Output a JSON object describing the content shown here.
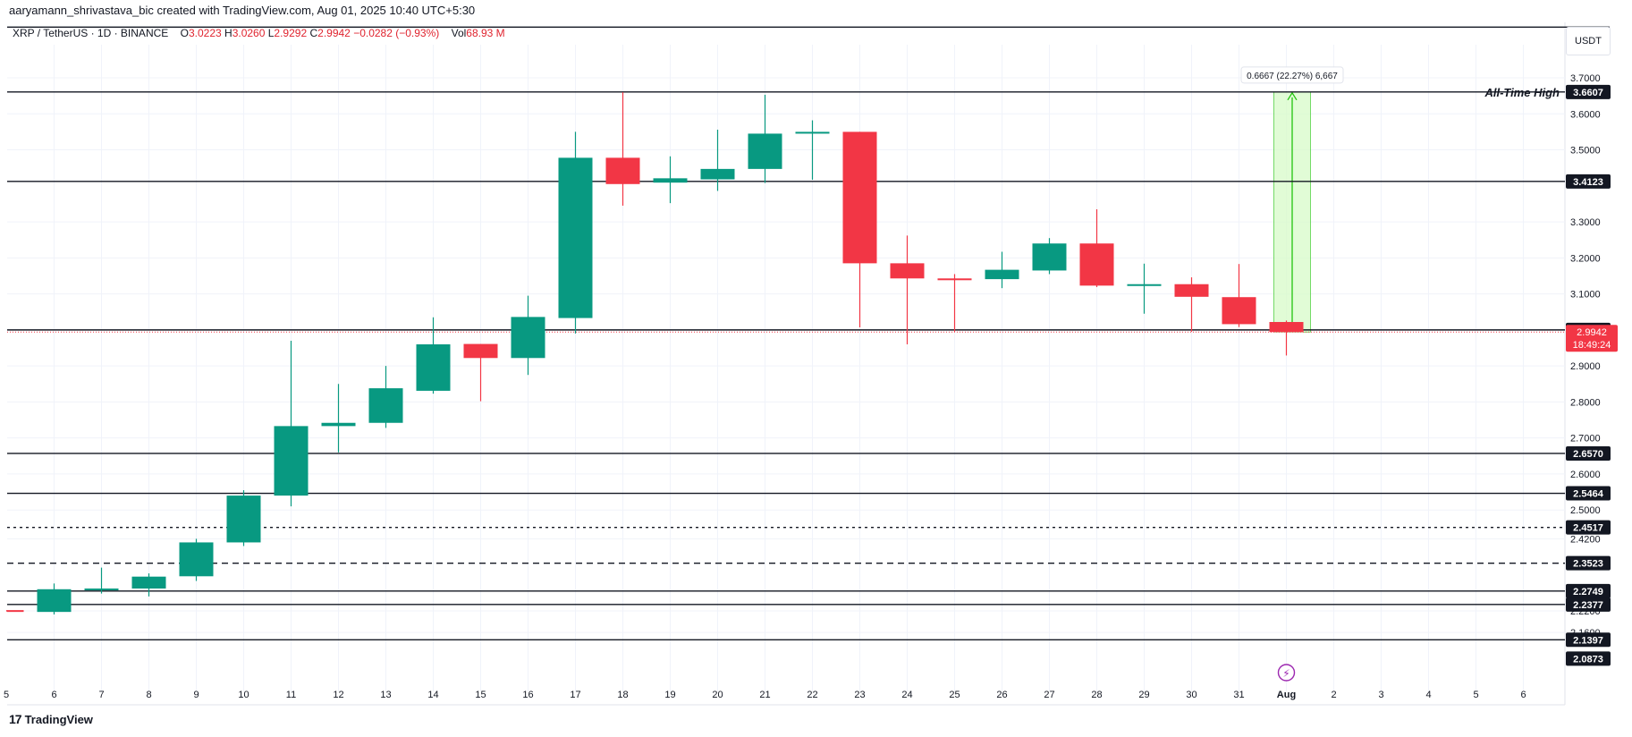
{
  "header": {
    "created_by": "aaryamann_shrivastava_bic created with TradingView.com, Aug 01, 2025 10:40 UTC+5:30"
  },
  "symbol_bar": {
    "symbol": "XRP / TetherUS · 1D · BINANCE",
    "open_label": "O",
    "open_value": "3.0223",
    "high_label": "H",
    "high_value": "3.0260",
    "low_label": "L",
    "low_value": "2.9292",
    "close_label": "C",
    "close_value": "2.9942",
    "change": "−0.0282 (−0.93%)",
    "vol_label": "Vol",
    "vol_value": "68.93 M"
  },
  "currency_button": "USDT",
  "footer": {
    "logo_mark": "17",
    "logo_text": "TradingView"
  },
  "colors": {
    "up": "#089981",
    "down": "#f23645",
    "line": "#131722",
    "price_badge": "#f23645",
    "measure_fill": "#d7fbc8",
    "measure_line": "#22c40e",
    "event": "#9c27b0"
  },
  "chart_data": {
    "type": "candlestick",
    "ylim": [
      2.08,
      3.84
    ],
    "x_ticks": [
      "6",
      "7",
      "8",
      "9",
      "10",
      "11",
      "12",
      "13",
      "14",
      "15",
      "16",
      "17",
      "18",
      "19",
      "20",
      "21",
      "22",
      "23",
      "24",
      "25",
      "26",
      "27",
      "28",
      "29",
      "30",
      "31",
      "Aug",
      "2",
      "3",
      "4",
      "5",
      "6"
    ],
    "y_ticks": [
      "3.7000",
      "3.6000",
      "3.5000",
      "3.3000",
      "3.2000",
      "3.1000",
      "2.9000",
      "2.8000",
      "2.7000",
      "2.6000",
      "2.5000",
      "2.4200",
      "2.2200",
      "2.1600"
    ],
    "candles": [
      {
        "date": "5",
        "open": 2.222,
        "high": 2.222,
        "low": 2.218,
        "close": 2.219
      },
      {
        "date": "6",
        "open": 2.217,
        "high": 2.296,
        "low": 2.21,
        "close": 2.28
      },
      {
        "date": "7",
        "open": 2.281,
        "high": 2.34,
        "low": 2.268,
        "close": 2.282
      },
      {
        "date": "8",
        "open": 2.282,
        "high": 2.324,
        "low": 2.26,
        "close": 2.315
      },
      {
        "date": "9",
        "open": 2.316,
        "high": 2.42,
        "low": 2.303,
        "close": 2.41
      },
      {
        "date": "10",
        "open": 2.41,
        "high": 2.555,
        "low": 2.4,
        "close": 2.54
      },
      {
        "date": "11",
        "open": 2.54,
        "high": 2.97,
        "low": 2.51,
        "close": 2.733
      },
      {
        "date": "12",
        "open": 2.733,
        "high": 2.85,
        "low": 2.66,
        "close": 2.742
      },
      {
        "date": "13",
        "open": 2.742,
        "high": 2.9,
        "low": 2.728,
        "close": 2.838
      },
      {
        "date": "14",
        "open": 2.831,
        "high": 3.035,
        "low": 2.823,
        "close": 2.96
      },
      {
        "date": "15",
        "open": 2.961,
        "high": 2.961,
        "low": 2.802,
        "close": 2.922
      },
      {
        "date": "16",
        "open": 2.922,
        "high": 3.095,
        "low": 2.875,
        "close": 3.036
      },
      {
        "date": "17",
        "open": 3.033,
        "high": 3.55,
        "low": 2.99,
        "close": 3.478
      },
      {
        "date": "18",
        "open": 3.478,
        "high": 3.66,
        "low": 3.345,
        "close": 3.405
      },
      {
        "date": "19",
        "open": 3.409,
        "high": 3.482,
        "low": 3.352,
        "close": 3.421
      },
      {
        "date": "20",
        "open": 3.418,
        "high": 3.556,
        "low": 3.386,
        "close": 3.447
      },
      {
        "date": "21",
        "open": 3.447,
        "high": 3.653,
        "low": 3.408,
        "close": 3.545
      },
      {
        "date": "22",
        "open": 3.545,
        "high": 3.582,
        "low": 3.417,
        "close": 3.55
      },
      {
        "date": "23",
        "open": 3.55,
        "high": 3.55,
        "low": 3.007,
        "close": 3.185
      },
      {
        "date": "24",
        "open": 3.185,
        "high": 3.262,
        "low": 2.96,
        "close": 3.143
      },
      {
        "date": "25",
        "open": 3.143,
        "high": 3.155,
        "low": 2.995,
        "close": 3.139
      },
      {
        "date": "26",
        "open": 3.141,
        "high": 3.217,
        "low": 3.116,
        "close": 3.167
      },
      {
        "date": "27",
        "open": 3.165,
        "high": 3.255,
        "low": 3.155,
        "close": 3.24
      },
      {
        "date": "28",
        "open": 3.24,
        "high": 3.335,
        "low": 3.119,
        "close": 3.123
      },
      {
        "date": "29",
        "open": 3.123,
        "high": 3.184,
        "low": 3.045,
        "close": 3.127
      },
      {
        "date": "30",
        "open": 3.127,
        "high": 3.146,
        "low": 2.995,
        "close": 3.092
      },
      {
        "date": "31",
        "open": 3.091,
        "high": 3.183,
        "low": 3.008,
        "close": 3.016
      },
      {
        "date": "Aug 1",
        "open": 3.022,
        "high": 3.026,
        "low": 2.929,
        "close": 2.994
      }
    ],
    "horizontal_lines": [
      {
        "price": 3.8407,
        "style": "solid",
        "label": ""
      },
      {
        "price": 3.6607,
        "style": "solid",
        "label": "3.6607"
      },
      {
        "price": 3.4123,
        "style": "solid",
        "label": "3.4123"
      },
      {
        "price": 3.0,
        "style": "solid",
        "label": "3.0000"
      },
      {
        "price": 2.657,
        "style": "solid",
        "label": "2.6570"
      },
      {
        "price": 2.5464,
        "style": "solid",
        "label": "2.5464"
      },
      {
        "price": 2.4517,
        "style": "dashed",
        "label": "2.4517"
      },
      {
        "price": 2.3523,
        "style": "dashed",
        "label": "2.3523"
      },
      {
        "price": 2.2749,
        "style": "solid",
        "label": "2.2749"
      },
      {
        "price": 2.2377,
        "style": "solid",
        "label": "2.2377"
      },
      {
        "price": 2.1397,
        "style": "solid",
        "label": "2.1397"
      },
      {
        "price": 2.0873,
        "style": "none",
        "label": "2.0873"
      }
    ],
    "annotation": {
      "text": "All-Time High",
      "price": 3.6607
    },
    "current_price": {
      "value": "2.9942",
      "countdown": "18:49:24",
      "price": 2.9942
    },
    "measure": {
      "label": "0.6667 (22.27%) 6,667",
      "from": 2.9942,
      "to": 3.6607,
      "start_date": "Aug 1",
      "end_date": "2"
    }
  }
}
